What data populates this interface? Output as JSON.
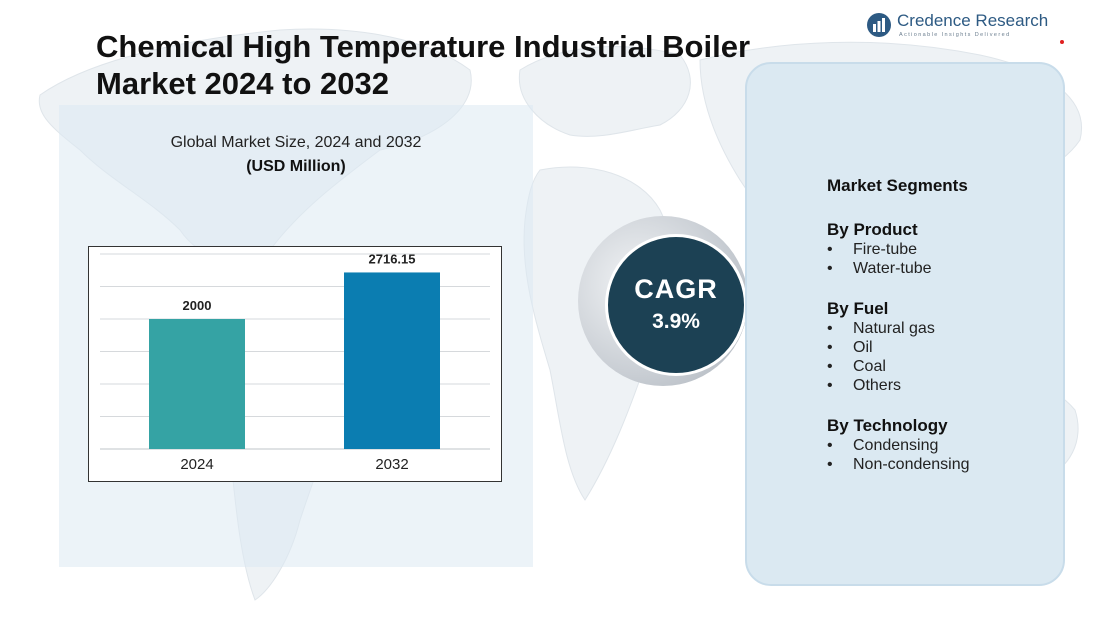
{
  "title_line1": "Chemical High Temperature Industrial Boiler",
  "title_line2": "Market 2024 to 2032",
  "brand": {
    "name": "Credence Research",
    "tagline": "Actionable Insights Delivered"
  },
  "subtitle_line1": "Global Market Size, 2024 and 2032",
  "subtitle_line2": "(USD Million)",
  "chart_data": {
    "type": "bar",
    "title": "Global Market Size, 2024 and 2032",
    "ylabel": "(USD Million)",
    "categories": [
      "2024",
      "2032"
    ],
    "values": [
      2000,
      2716.15
    ],
    "value_labels": [
      "2000",
      "2716.15"
    ],
    "colors": [
      "#35a3a4",
      "#0b7db1"
    ],
    "ylim": [
      0,
      3000
    ],
    "grid": true,
    "legend": "none"
  },
  "cagr": {
    "label": "CAGR",
    "value": "3.9%"
  },
  "segments": {
    "heading": "Market Segments",
    "groups": [
      {
        "title": "By Product",
        "items": [
          "Fire-tube",
          "Water-tube"
        ]
      },
      {
        "title": "By Fuel",
        "items": [
          "Natural gas",
          "Oil",
          "Coal",
          "Others"
        ]
      },
      {
        "title": "By Technology",
        "items": [
          "Condensing",
          "Non-condensing"
        ]
      }
    ]
  }
}
